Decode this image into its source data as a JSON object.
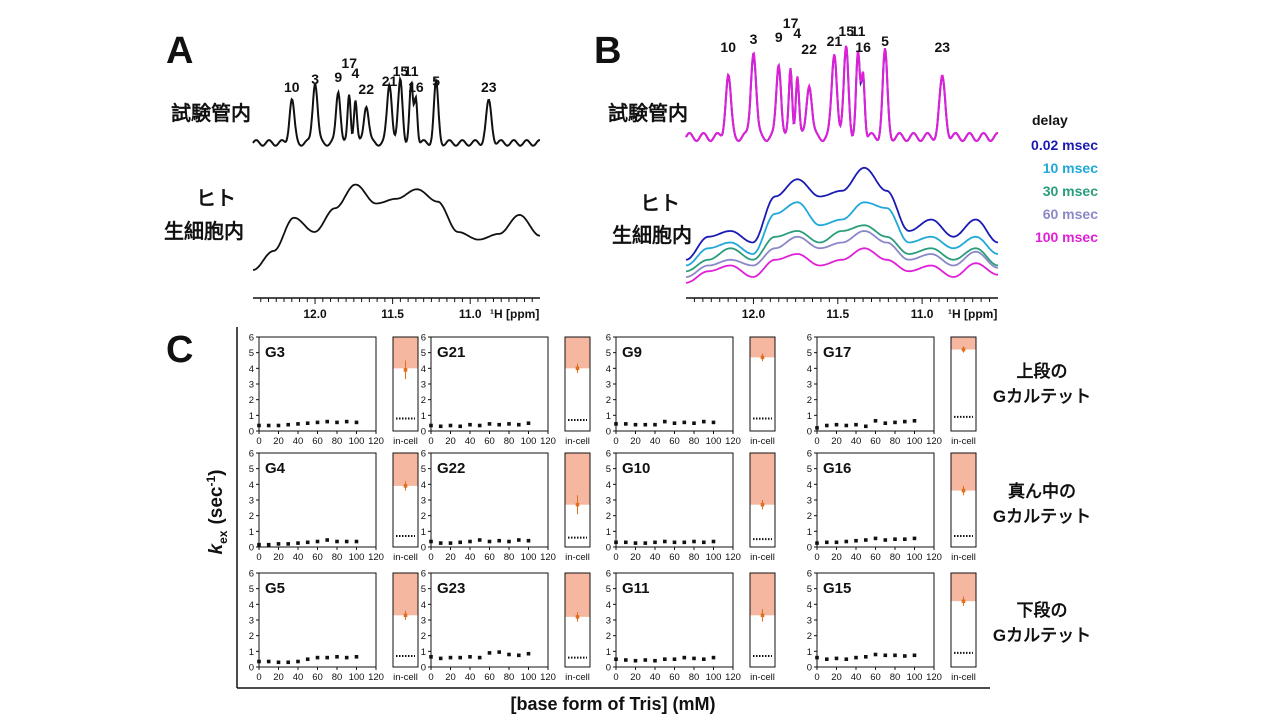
{
  "panel_letters": {
    "a": "A",
    "b": "B",
    "c": "C"
  },
  "row_labels": {
    "in_vitro": "試験管内",
    "in_cell_line1": "ヒト",
    "in_cell_line2": "生細胞内"
  },
  "nmr_axis": {
    "ticks": [
      "12.0",
      "11.5",
      "11.0"
    ],
    "unit_label": "¹H [ppm]"
  },
  "delay_legend": {
    "title": "delay",
    "items": [
      {
        "label": "0.02 msec",
        "color": "#1a1ab4"
      },
      {
        "label": "10 msec",
        "color": "#20a8d8"
      },
      {
        "label": "30 msec",
        "color": "#2a9d7c"
      },
      {
        "label": "60 msec",
        "color": "#8a88c8"
      },
      {
        "label": "100 msec",
        "color": "#e020d8"
      }
    ]
  },
  "group_labels": [
    {
      "line1": "上段の",
      "line2": "Gカルテット"
    },
    {
      "line1": "真ん中の",
      "line2": "Gカルテット"
    },
    {
      "line1": "下段の",
      "line2": "Gカルテット"
    }
  ],
  "y_axis_label": {
    "k": "k",
    "sub": "ex",
    "rest": "(sec",
    "sup": "-1",
    "close": ")"
  },
  "x_axis_label": "[base form of Tris] (mM)",
  "small_ticks": {
    "x": [
      "0",
      "20",
      "40",
      "60",
      "80",
      "100",
      "120"
    ],
    "y": [
      "0",
      "1",
      "2",
      "3",
      "4",
      "5",
      "6"
    ],
    "in_cell": "in-cell"
  },
  "chart_data": [
    {
      "type": "line",
      "panel": "A",
      "series_description": "1D imino 1H NMR spectra (in vitro vs in human living cells)",
      "x_range_ppm": [
        12.4,
        10.55
      ],
      "peak_labels": [
        {
          "label": "10",
          "ppm": 12.15
        },
        {
          "label": "3",
          "ppm": 12.0
        },
        {
          "label": "9",
          "ppm": 11.85
        },
        {
          "label": "17",
          "ppm": 11.78
        },
        {
          "label": "4",
          "ppm": 11.74
        },
        {
          "label": "22",
          "ppm": 11.67
        },
        {
          "label": "21",
          "ppm": 11.52
        },
        {
          "label": "15",
          "ppm": 11.45
        },
        {
          "label": "11",
          "ppm": 11.38
        },
        {
          "label": "16",
          "ppm": 11.35
        },
        {
          "label": "5",
          "ppm": 11.22
        },
        {
          "label": "23",
          "ppm": 10.88
        }
      ]
    },
    {
      "type": "line",
      "panel": "B",
      "series_description": "1D spectra recorded with varying delays",
      "x_range_ppm": [
        12.4,
        10.55
      ],
      "peak_labels": [
        {
          "label": "10",
          "ppm": 12.15
        },
        {
          "label": "3",
          "ppm": 12.0
        },
        {
          "label": "9",
          "ppm": 11.85
        },
        {
          "label": "17",
          "ppm": 11.78
        },
        {
          "label": "4",
          "ppm": 11.74
        },
        {
          "label": "22",
          "ppm": 11.67
        },
        {
          "label": "21",
          "ppm": 11.52
        },
        {
          "label": "15",
          "ppm": 11.45
        },
        {
          "label": "11",
          "ppm": 11.38
        },
        {
          "label": "16",
          "ppm": 11.35
        },
        {
          "label": "5",
          "ppm": 11.22
        },
        {
          "label": "23",
          "ppm": 10.88
        }
      ]
    },
    {
      "type": "scatter",
      "panel": "C",
      "xlabel": "[base form of Tris] (mM)",
      "ylabel": "kex (sec-1)",
      "xlim": [
        0,
        120
      ],
      "ylim": [
        0,
        6
      ],
      "x": [
        0,
        10,
        20,
        30,
        40,
        50,
        60,
        70,
        80,
        90,
        100
      ],
      "panels": [
        {
          "name": "G3",
          "values": [
            0.35,
            0.35,
            0.35,
            0.4,
            0.45,
            0.5,
            0.55,
            0.6,
            0.55,
            0.6,
            0.55
          ],
          "in_cell": {
            "value": 3.9,
            "err": 0.6,
            "band": [
              4.0,
              6.0
            ],
            "dotted": 0.8
          }
        },
        {
          "name": "G21",
          "values": [
            0.35,
            0.3,
            0.35,
            0.3,
            0.4,
            0.35,
            0.45,
            0.4,
            0.45,
            0.4,
            0.5
          ],
          "in_cell": {
            "value": 4.0,
            "err": 0.3,
            "band": [
              4.0,
              6.0
            ],
            "dotted": 0.7
          }
        },
        {
          "name": "G9",
          "values": [
            0.45,
            0.45,
            0.4,
            0.4,
            0.4,
            0.6,
            0.5,
            0.55,
            0.5,
            0.6,
            0.55
          ],
          "in_cell": {
            "value": 4.7,
            "err": 0.25,
            "band": [
              4.7,
              6.0
            ],
            "dotted": 0.8
          }
        },
        {
          "name": "G17",
          "values": [
            0.2,
            0.35,
            0.4,
            0.35,
            0.4,
            0.3,
            0.65,
            0.5,
            0.55,
            0.6,
            0.65
          ],
          "in_cell": {
            "value": 5.2,
            "err": 0.2,
            "band": [
              5.2,
              6.0
            ],
            "dotted": 0.9
          }
        },
        {
          "name": "G4",
          "values": [
            0.15,
            0.15,
            0.2,
            0.2,
            0.25,
            0.3,
            0.35,
            0.45,
            0.35,
            0.35,
            0.35
          ],
          "in_cell": {
            "value": 3.9,
            "err": 0.3,
            "band": [
              3.9,
              6.0
            ],
            "dotted": 0.7
          }
        },
        {
          "name": "G22",
          "values": [
            0.35,
            0.25,
            0.25,
            0.3,
            0.35,
            0.45,
            0.35,
            0.4,
            0.35,
            0.45,
            0.4
          ],
          "in_cell": {
            "value": 2.7,
            "err": 0.6,
            "band": [
              2.7,
              6.0
            ],
            "dotted": 0.6
          }
        },
        {
          "name": "G10",
          "values": [
            0.3,
            0.3,
            0.25,
            0.25,
            0.3,
            0.35,
            0.3,
            0.3,
            0.35,
            0.3,
            0.35
          ],
          "in_cell": {
            "value": 2.7,
            "err": 0.3,
            "band": [
              2.7,
              6.0
            ],
            "dotted": 0.5
          }
        },
        {
          "name": "G16",
          "values": [
            0.25,
            0.3,
            0.3,
            0.35,
            0.4,
            0.45,
            0.55,
            0.45,
            0.5,
            0.5,
            0.55
          ],
          "in_cell": {
            "value": 3.6,
            "err": 0.3,
            "band": [
              3.6,
              6.0
            ],
            "dotted": 0.7
          }
        },
        {
          "name": "G5",
          "values": [
            0.35,
            0.35,
            0.3,
            0.3,
            0.35,
            0.5,
            0.6,
            0.6,
            0.65,
            0.6,
            0.65
          ],
          "in_cell": {
            "value": 3.3,
            "err": 0.3,
            "band": [
              3.3,
              6.0
            ],
            "dotted": 0.7
          }
        },
        {
          "name": "G23",
          "values": [
            0.65,
            0.55,
            0.6,
            0.6,
            0.65,
            0.6,
            0.9,
            0.95,
            0.8,
            0.75,
            0.85
          ],
          "in_cell": {
            "value": 3.2,
            "err": 0.3,
            "band": [
              3.2,
              6.0
            ],
            "dotted": 0.6
          }
        },
        {
          "name": "G11",
          "values": [
            0.5,
            0.45,
            0.4,
            0.45,
            0.4,
            0.5,
            0.5,
            0.6,
            0.55,
            0.5,
            0.6
          ],
          "in_cell": {
            "value": 3.3,
            "err": 0.4,
            "band": [
              3.3,
              6.0
            ],
            "dotted": 0.7
          }
        },
        {
          "name": "G15",
          "values": [
            0.6,
            0.5,
            0.55,
            0.5,
            0.6,
            0.65,
            0.8,
            0.75,
            0.75,
            0.7,
            0.75
          ],
          "in_cell": {
            "value": 4.2,
            "err": 0.3,
            "band": [
              4.2,
              6.0
            ],
            "dotted": 0.9
          }
        }
      ]
    }
  ]
}
